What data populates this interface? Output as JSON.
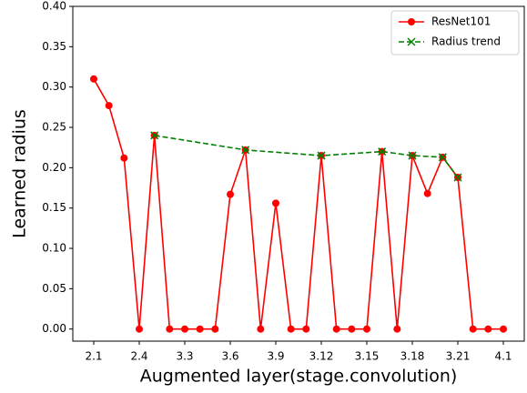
{
  "chart_data": {
    "type": "line",
    "x_label": "Augmented layer(stage.convolution)",
    "y_label": "Learned radius",
    "xlim": [
      -1.38,
      28.38
    ],
    "xticks": [
      {
        "value": 0,
        "label": "2.1"
      },
      {
        "value": 3,
        "label": "2.4"
      },
      {
        "value": 6,
        "label": "3.3"
      },
      {
        "value": 9,
        "label": "3.6"
      },
      {
        "value": 12,
        "label": "3.9"
      },
      {
        "value": 15,
        "label": "3.12"
      },
      {
        "value": 18,
        "label": "3.15"
      },
      {
        "value": 21,
        "label": "3.18"
      },
      {
        "value": 24,
        "label": "3.21"
      },
      {
        "value": 27,
        "label": "4.1"
      }
    ],
    "ylim": [
      -0.015,
      0.4
    ],
    "yticks": [
      {
        "value": 0,
        "label": "0.00"
      },
      {
        "value": 0.05,
        "label": "0.05"
      },
      {
        "value": 0.1,
        "label": "0.10"
      },
      {
        "value": 0.15,
        "label": "0.15"
      },
      {
        "value": 0.2,
        "label": "0.20"
      },
      {
        "value": 0.25,
        "label": "0.25"
      },
      {
        "value": 0.3,
        "label": "0.30"
      },
      {
        "value": 0.35,
        "label": "0.35"
      },
      {
        "value": 0.4,
        "label": "0.40"
      }
    ],
    "legend": "upper right",
    "series": [
      {
        "name": "ResNet101",
        "color": "#ff0000",
        "marker": "circle",
        "dash": "solid",
        "x": [
          0,
          1,
          2,
          3,
          4,
          5,
          6,
          7,
          8,
          9,
          10,
          11,
          12,
          13,
          14,
          15,
          16,
          17,
          18,
          19,
          20,
          21,
          22,
          23,
          24,
          25,
          26,
          27
        ],
        "values": [
          0.31,
          0.277,
          0.212,
          0,
          0.24,
          0,
          0,
          0,
          0,
          0.167,
          0.222,
          0,
          0.156,
          0,
          0,
          0.215,
          0,
          0,
          0,
          0.22,
          0,
          0.215,
          0.168,
          0.213,
          0.188,
          0,
          0,
          0
        ]
      },
      {
        "name": "Radius trend",
        "color": "#008000",
        "marker": "x",
        "dash": "dashed",
        "x": [
          4,
          10,
          15,
          19,
          21,
          23,
          24
        ],
        "values": [
          0.24,
          0.222,
          0.215,
          0.22,
          0.215,
          0.213,
          0.188
        ]
      }
    ]
  }
}
